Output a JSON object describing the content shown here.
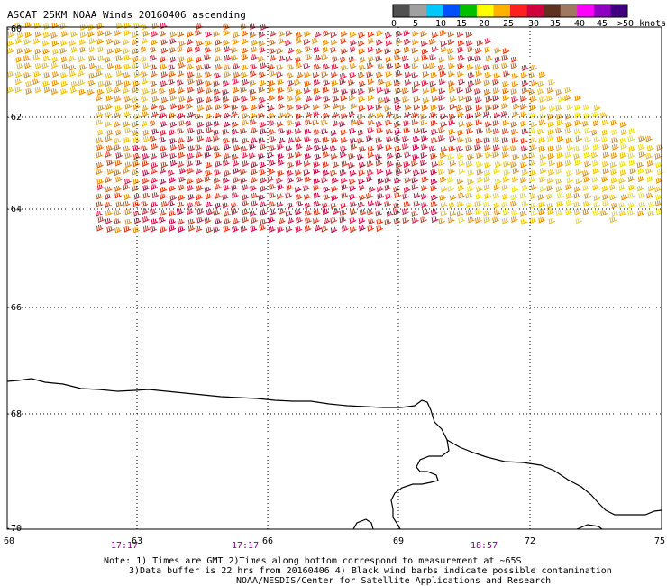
{
  "title": "ASCAT 25KM NOAA Winds 20160406 ascending",
  "legend": {
    "labels": [
      "0",
      "5",
      "10",
      "15",
      "20",
      "25",
      "30",
      "35",
      "40",
      "45",
      ">50 knots"
    ],
    "colors": [
      "#505050",
      "#a0a0a0",
      "#00c8ff",
      "#0050ff",
      "#00c000",
      "#ffff00",
      "#ffb000",
      "#ff2020",
      "#d00040",
      "#603020",
      "#a07860",
      "#ff00ff",
      "#9000c0",
      "#400080"
    ]
  },
  "lat_labels": [
    "-60",
    "-62",
    "-64",
    "-66",
    "-68",
    "-70"
  ],
  "lon_labels": [
    "60",
    "63",
    "66",
    "69",
    "72",
    "75"
  ],
  "times": [
    "17:17",
    "17:17",
    "18:57"
  ],
  "notes": {
    "line1": "Note: 1) Times are GMT 2)Times along bottom correspond to measurement at ~65S",
    "line2": "3)Data buffer is 22 hrs from 20160406 4) Black wind barbs indicate possible contamination",
    "line3": "NOAA/NESDIS/Center for Satellite Applications and Research"
  },
  "wind_palette": [
    "#f0e000",
    "#f0c000",
    "#e89000",
    "#e06000",
    "#e03010",
    "#d81840",
    "#c80040"
  ]
}
